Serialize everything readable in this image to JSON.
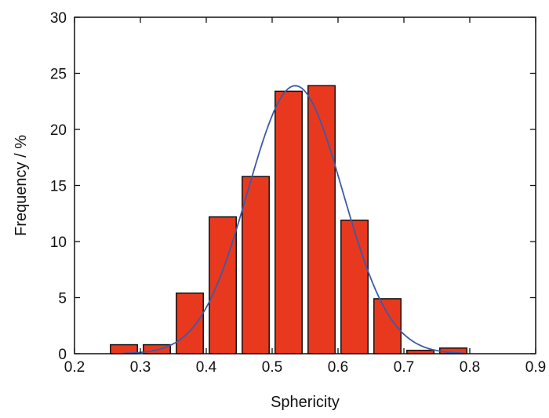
{
  "chart_data": {
    "type": "bar",
    "xlabel": "Sphericity",
    "ylabel": "Frequency / %",
    "xlim": [
      0.2,
      0.9
    ],
    "ylim": [
      0,
      30
    ],
    "xticks": [
      "0.2",
      "0.3",
      "0.4",
      "0.5",
      "0.6",
      "0.7",
      "0.8",
      "0.9"
    ],
    "yticks": [
      "0",
      "5",
      "10",
      "15",
      "20",
      "25",
      "30"
    ],
    "bin_width": 0.05,
    "bins": [
      {
        "x": 0.275,
        "y": 0.8
      },
      {
        "x": 0.325,
        "y": 0.8
      },
      {
        "x": 0.375,
        "y": 5.4
      },
      {
        "x": 0.425,
        "y": 12.2
      },
      {
        "x": 0.475,
        "y": 15.8
      },
      {
        "x": 0.525,
        "y": 23.4
      },
      {
        "x": 0.575,
        "y": 23.9
      },
      {
        "x": 0.625,
        "y": 11.9
      },
      {
        "x": 0.675,
        "y": 4.9
      },
      {
        "x": 0.725,
        "y": 0.3
      },
      {
        "x": 0.775,
        "y": 0.5
      }
    ],
    "fit_curve": {
      "type": "gaussian",
      "mean": 0.535,
      "sigma": 0.072,
      "peak": 23.9,
      "x_range": [
        0.275,
        0.79
      ]
    },
    "grid": false,
    "colors": {
      "bar_fill": "#e8391f",
      "bar_edge": "#111111",
      "curve": "#3a5aa8",
      "axis": "#111111"
    }
  }
}
